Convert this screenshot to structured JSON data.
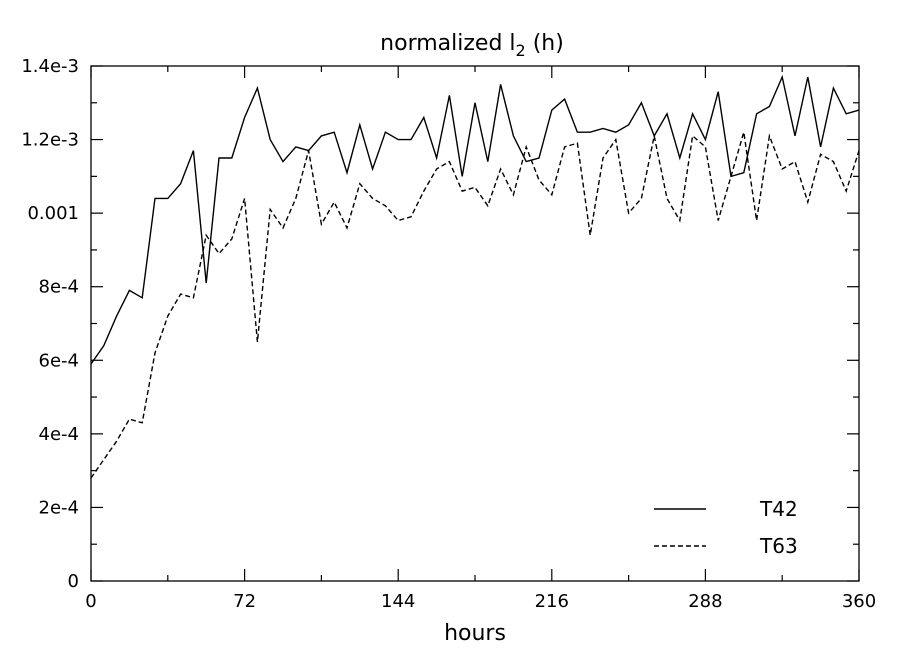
{
  "chart_data": {
    "type": "line",
    "title": "normalized l",
    "title_subscript": "2",
    "title_suffix": " (h)",
    "xlabel": "hours",
    "ylabel": "",
    "xlim": [
      0,
      360
    ],
    "ylim": [
      0,
      0.0014
    ],
    "xticks": [
      0,
      72,
      144,
      216,
      288,
      360
    ],
    "xtick_labels": [
      "0",
      "72",
      "144",
      "216",
      "288",
      "360"
    ],
    "yticks": [
      0,
      0.0002,
      0.0004,
      0.0006,
      0.0008,
      0.001,
      0.0012,
      0.0014
    ],
    "ytick_labels": [
      "0",
      "2e-4",
      "4e-4",
      "6e-4",
      "8e-4",
      "0.001",
      "1.2e-3",
      "1.4e-3"
    ],
    "grid": false,
    "legend_position": "bottom-right",
    "x": [
      0,
      6,
      12,
      18,
      24,
      30,
      36,
      42,
      48,
      54,
      60,
      66,
      72,
      78,
      84,
      90,
      96,
      102,
      108,
      114,
      120,
      126,
      132,
      138,
      144,
      150,
      156,
      162,
      168,
      174,
      180,
      186,
      192,
      198,
      204,
      210,
      216,
      222,
      228,
      234,
      240,
      246,
      252,
      258,
      264,
      270,
      276,
      282,
      288,
      294,
      300,
      306,
      312,
      318,
      324,
      330,
      336,
      342,
      348,
      354,
      360
    ],
    "series": [
      {
        "name": "T42",
        "style": "solid",
        "values": [
          0.00059,
          0.00064,
          0.00072,
          0.00079,
          0.00077,
          0.00104,
          0.00104,
          0.00108,
          0.00117,
          0.00081,
          0.00115,
          0.00115,
          0.00126,
          0.00134,
          0.0012,
          0.00114,
          0.00118,
          0.00117,
          0.00121,
          0.00122,
          0.00111,
          0.00124,
          0.00112,
          0.00122,
          0.0012,
          0.0012,
          0.00126,
          0.00115,
          0.00132,
          0.0011,
          0.0013,
          0.00114,
          0.00135,
          0.00121,
          0.00114,
          0.00115,
          0.00128,
          0.00131,
          0.00122,
          0.00122,
          0.00123,
          0.00122,
          0.00124,
          0.0013,
          0.00121,
          0.00127,
          0.00115,
          0.00127,
          0.0012,
          0.00133,
          0.0011,
          0.00111,
          0.00127,
          0.00129,
          0.00137,
          0.00121,
          0.00137,
          0.00118,
          0.00134,
          0.00127,
          0.00128
        ]
      },
      {
        "name": "T63",
        "style": "dashed",
        "values": [
          0.00028,
          0.00033,
          0.00038,
          0.00044,
          0.00043,
          0.00062,
          0.00072,
          0.00078,
          0.00077,
          0.00094,
          0.00089,
          0.00093,
          0.00104,
          0.00065,
          0.00101,
          0.00096,
          0.00104,
          0.00117,
          0.00097,
          0.00103,
          0.00096,
          0.00108,
          0.00104,
          0.00102,
          0.00098,
          0.00099,
          0.00106,
          0.00112,
          0.00114,
          0.00106,
          0.00107,
          0.00102,
          0.00112,
          0.00105,
          0.00118,
          0.00109,
          0.00105,
          0.00118,
          0.00119,
          0.00094,
          0.00115,
          0.0012,
          0.001,
          0.00104,
          0.00121,
          0.00104,
          0.00098,
          0.00121,
          0.00118,
          0.00098,
          0.0011,
          0.00122,
          0.00098,
          0.00121,
          0.00112,
          0.00114,
          0.00103,
          0.00116,
          0.00114,
          0.00106,
          0.00117
        ]
      }
    ]
  }
}
